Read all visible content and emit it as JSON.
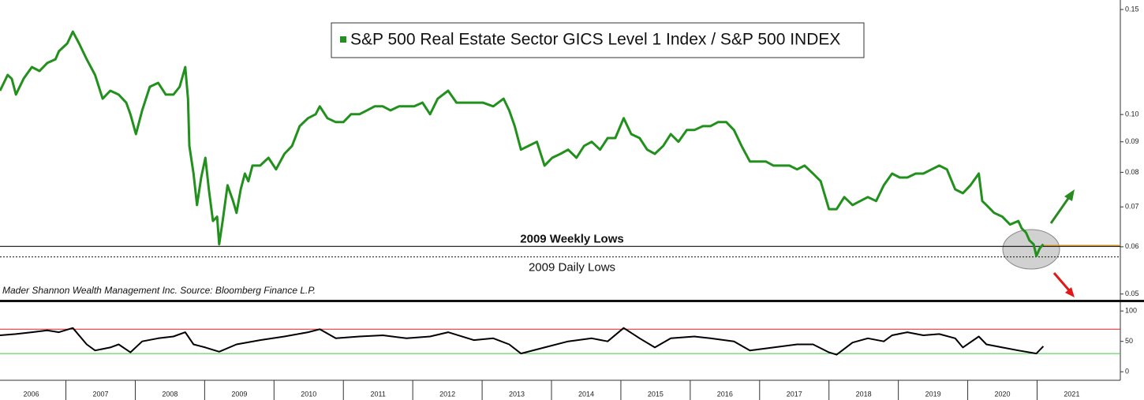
{
  "chart_data": [
    {
      "type": "line",
      "log_scale": true,
      "source": "Mader Shannon Wealth Management Inc. Source: Bloomberg Finance L.P.",
      "xlim": [
        2006.05,
        2022.2
      ],
      "ylim": [
        0.0489,
        0.1556
      ],
      "yticks": [
        0.05,
        0.06,
        0.07,
        0.08,
        0.09,
        {
          "value": 0.1,
          "label": "0.10"
        },
        0.15
      ],
      "reference_lines": [
        {
          "label": "2009 Weekly Lows",
          "value": 0.0601
        },
        {
          "label": "2009 Daily Lows",
          "value": 0.0577
        }
      ],
      "x": [
        2006.05,
        2006.16,
        2006.22,
        2006.28,
        2006.39,
        2006.51,
        2006.62,
        2006.73,
        2006.85,
        2006.9,
        2007.02,
        2007.1,
        2007.19,
        2007.3,
        2007.42,
        2007.53,
        2007.64,
        2007.76,
        2007.87,
        2007.93,
        2008.01,
        2008.1,
        2008.21,
        2008.33,
        2008.44,
        2008.55,
        2008.64,
        2008.72,
        2008.76,
        2008.78,
        2008.84,
        2008.89,
        2008.95,
        2009.01,
        2009.06,
        2009.12,
        2009.18,
        2009.21,
        2009.26,
        2009.33,
        2009.41,
        2009.46,
        2009.52,
        2009.58,
        2009.63,
        2009.69,
        2009.8,
        2009.92,
        2010.03,
        2010.15,
        2010.26,
        2010.37,
        2010.49,
        2010.6,
        2010.66,
        2010.77,
        2010.89,
        2011.0,
        2011.11,
        2011.23,
        2011.34,
        2011.45,
        2011.57,
        2011.68,
        2011.8,
        2011.91,
        2012.02,
        2012.14,
        2012.25,
        2012.36,
        2012.51,
        2012.63,
        2012.76,
        2012.88,
        2013.01,
        2013.16,
        2013.31,
        2013.39,
        2013.47,
        2013.56,
        2013.67,
        2013.79,
        2013.9,
        2014.01,
        2014.13,
        2014.24,
        2014.36,
        2014.47,
        2014.58,
        2014.7,
        2014.81,
        2014.92,
        2015.04,
        2015.15,
        2015.27,
        2015.38,
        2015.49,
        2015.61,
        2015.72,
        2015.83,
        2015.95,
        2016.06,
        2016.18,
        2016.29,
        2016.4,
        2016.52,
        2016.63,
        2016.74,
        2016.86,
        2016.97,
        2017.09,
        2017.2,
        2017.31,
        2017.43,
        2017.54,
        2017.65,
        2017.77,
        2017.88,
        2018.0,
        2018.11,
        2018.22,
        2018.34,
        2018.45,
        2018.56,
        2018.68,
        2018.79,
        2018.91,
        2019.02,
        2019.13,
        2019.25,
        2019.36,
        2019.48,
        2019.59,
        2019.7,
        2019.82,
        2019.93,
        2020.04,
        2020.16,
        2020.21,
        2020.27,
        2020.38,
        2020.5,
        2020.61,
        2020.73,
        2020.78,
        2020.84,
        2020.89,
        2020.95,
        2020.99,
        2021.04,
        2021.09
      ],
      "series": [
        {
          "name": "S&P 500 Real Estate Sector GICS Level 1 Index / S&P 500 INDEX",
          "color": "#22901c",
          "values": [
            0.1096,
            0.1165,
            0.1148,
            0.108,
            0.1148,
            0.1201,
            0.1183,
            0.122,
            0.1238,
            0.1277,
            0.1316,
            0.1377,
            0.1316,
            0.1238,
            0.1165,
            0.1063,
            0.1096,
            0.108,
            0.1047,
            0.1001,
            0.0927,
            0.1016,
            0.1113,
            0.113,
            0.108,
            0.108,
            0.1113,
            0.1201,
            0.1063,
            0.0886,
            0.0796,
            0.0705,
            0.0784,
            0.0846,
            0.0749,
            0.0663,
            0.0674,
            0.0606,
            0.0663,
            0.0761,
            0.0716,
            0.0684,
            0.0749,
            0.0796,
            0.0773,
            0.0821,
            0.0821,
            0.0846,
            0.0809,
            0.0859,
            0.0886,
            0.0956,
            0.0986,
            0.1001,
            0.1032,
            0.0986,
            0.0971,
            0.0971,
            0.1001,
            0.1001,
            0.1016,
            0.1032,
            0.1032,
            0.1016,
            0.1032,
            0.1032,
            0.1032,
            0.1047,
            0.1001,
            0.1063,
            0.1096,
            0.1047,
            0.1047,
            0.1047,
            0.1047,
            0.1032,
            0.1063,
            0.1016,
            0.0956,
            0.0873,
            0.0886,
            0.09,
            0.0821,
            0.0846,
            0.0859,
            0.0873,
            0.0846,
            0.0886,
            0.09,
            0.0873,
            0.0913,
            0.0913,
            0.0986,
            0.0927,
            0.0913,
            0.0873,
            0.0859,
            0.0886,
            0.0927,
            0.09,
            0.0942,
            0.0942,
            0.0956,
            0.0956,
            0.0971,
            0.0971,
            0.0942,
            0.0886,
            0.0834,
            0.0834,
            0.0834,
            0.0821,
            0.0821,
            0.0821,
            0.0809,
            0.0821,
            0.0796,
            0.0773,
            0.0694,
            0.0694,
            0.0727,
            0.0705,
            0.0716,
            0.0727,
            0.0716,
            0.0761,
            0.0796,
            0.0784,
            0.0784,
            0.0796,
            0.0796,
            0.0809,
            0.0821,
            0.0809,
            0.0749,
            0.0738,
            0.0761,
            0.0796,
            0.0716,
            0.0705,
            0.0684,
            0.0674,
            0.0654,
            0.0663,
            0.0644,
            0.0634,
            0.0615,
            0.0606,
            0.0579,
            0.0597,
            0.0606
          ]
        }
      ]
    },
    {
      "type": "line",
      "xlim": [
        2006.05,
        2022.2
      ],
      "ylim": [
        -14,
        108
      ],
      "yticks": [
        0,
        50,
        100
      ],
      "xticks": [
        2006,
        2007,
        2008,
        2009,
        2010,
        2011,
        2012,
        2013,
        2014,
        2015,
        2016,
        2017,
        2018,
        2019,
        2020,
        2021
      ],
      "thresholds": [
        {
          "value": 70,
          "color": "#e02020"
        },
        {
          "value": 30,
          "color": "#3ccc3c"
        }
      ],
      "x": [
        2006.05,
        2006.28,
        2006.51,
        2006.73,
        2006.9,
        2007.1,
        2007.3,
        2007.42,
        2007.64,
        2007.76,
        2007.93,
        2008.1,
        2008.33,
        2008.55,
        2008.72,
        2008.84,
        2009.01,
        2009.21,
        2009.46,
        2009.8,
        2010.15,
        2010.49,
        2010.66,
        2010.89,
        2011.23,
        2011.57,
        2011.91,
        2012.25,
        2012.51,
        2012.88,
        2013.16,
        2013.39,
        2013.56,
        2013.9,
        2014.24,
        2014.58,
        2014.81,
        2015.04,
        2015.27,
        2015.49,
        2015.72,
        2016.06,
        2016.29,
        2016.63,
        2016.86,
        2017.2,
        2017.54,
        2017.77,
        2018.0,
        2018.11,
        2018.34,
        2018.56,
        2018.79,
        2018.91,
        2019.13,
        2019.36,
        2019.59,
        2019.82,
        2019.93,
        2020.16,
        2020.27,
        2020.5,
        2020.73,
        2020.99,
        2021.09
      ],
      "series": [
        {
          "color": "#000000",
          "values": [
            60,
            62,
            65,
            68,
            65,
            72,
            45,
            35,
            40,
            45,
            32,
            50,
            55,
            58,
            65,
            45,
            40,
            33,
            45,
            52,
            58,
            65,
            70,
            55,
            58,
            60,
            55,
            58,
            65,
            52,
            55,
            45,
            30,
            40,
            50,
            55,
            50,
            72,
            55,
            40,
            55,
            58,
            55,
            50,
            35,
            40,
            45,
            45,
            32,
            28,
            48,
            55,
            50,
            60,
            65,
            60,
            62,
            55,
            40,
            58,
            45,
            40,
            35,
            30,
            42
          ]
        }
      ]
    }
  ]
}
